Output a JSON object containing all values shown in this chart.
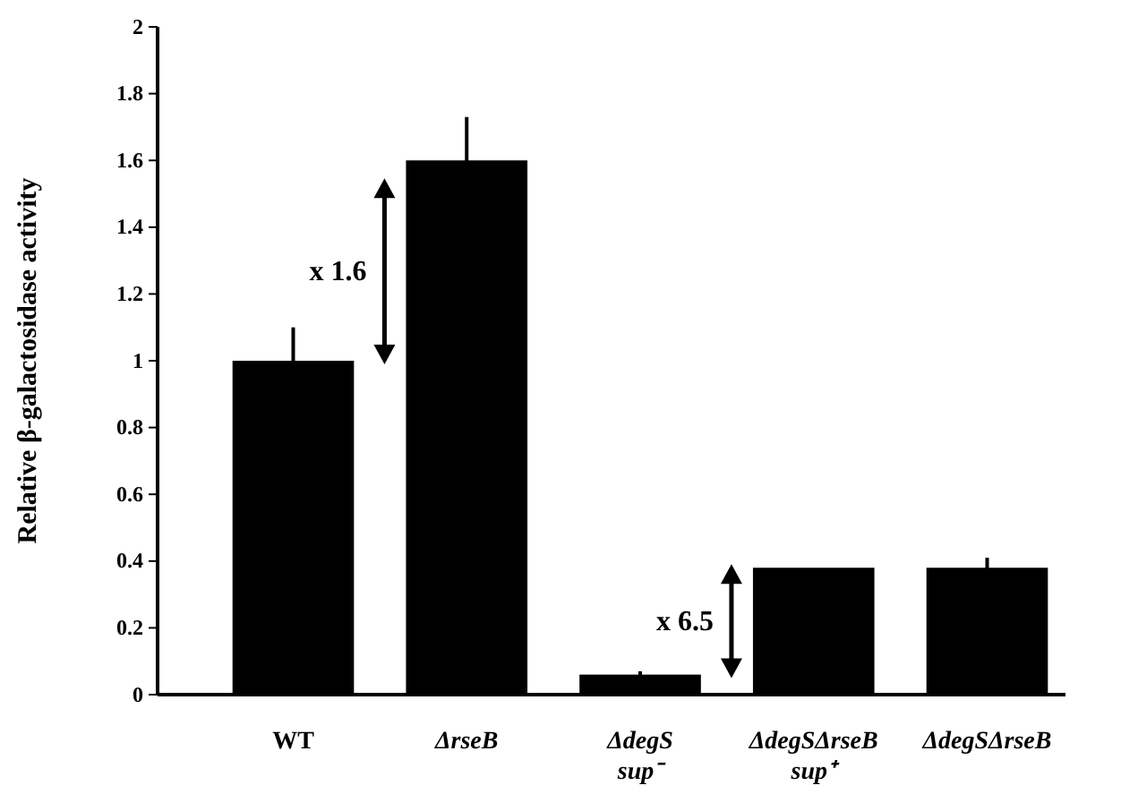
{
  "chart_data": {
    "type": "bar",
    "ylabel": "Relative β-galactosidase activity",
    "categories": [
      "WT",
      "ΔrseB",
      "ΔdegS\nsup⁻",
      "ΔdegSΔrseB\nsup⁺",
      "ΔdegSΔrseB"
    ],
    "values": [
      1.0,
      1.6,
      0.06,
      0.38,
      0.38
    ],
    "errors": [
      0.1,
      0.13,
      0.01,
      null,
      0.03
    ],
    "color": "#000000",
    "ylim": [
      0,
      2
    ],
    "yticks": [
      0,
      0.2,
      0.4,
      0.6,
      0.8,
      1,
      1.2,
      1.4,
      1.6,
      1.8,
      2
    ],
    "annotations": [
      "x 1.6",
      "x 6.5"
    ],
    "grid": false
  }
}
